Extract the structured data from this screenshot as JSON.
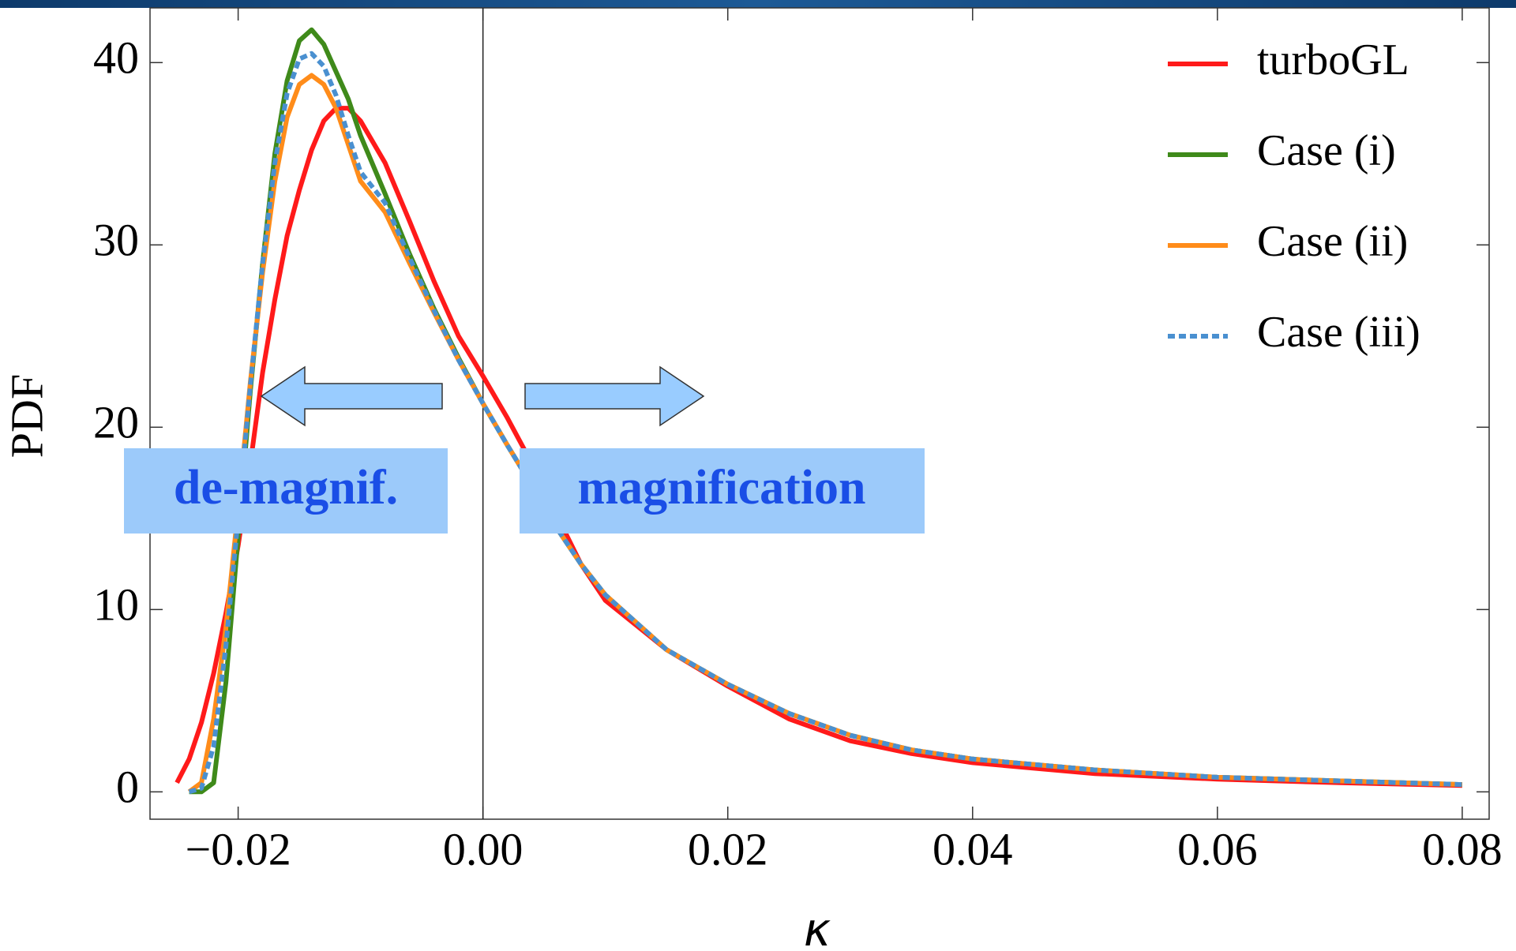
{
  "chart_data": {
    "type": "line",
    "x_label": "κ",
    "y_label": "PDF",
    "x": [
      -0.026,
      -0.025,
      -0.024,
      -0.023,
      -0.022,
      -0.021,
      -0.02,
      -0.019,
      -0.018,
      -0.017,
      -0.016,
      -0.015,
      -0.014,
      -0.013,
      -0.012,
      -0.011,
      -0.01,
      -0.008,
      -0.006,
      -0.004,
      -0.002,
      0,
      0.002,
      0.004,
      0.006,
      0.008,
      0.01,
      0.015,
      0.02,
      0.025,
      0.03,
      0.035,
      0.04,
      0.05,
      0.06,
      0.07,
      0.08
    ],
    "series": [
      {
        "name": "turboGL",
        "color": "#ff1a1a",
        "style": "solid",
        "values": [
          null,
          0.5,
          1.8,
          3.8,
          6.5,
          9.8,
          13.5,
          18,
          23,
          27,
          30.5,
          33,
          35.2,
          36.8,
          37.5,
          37.5,
          36.8,
          34.5,
          31.3,
          28,
          25,
          22.8,
          20.5,
          18,
          15.2,
          12.5,
          10.5,
          7.8,
          5.8,
          4,
          2.8,
          2.1,
          1.6,
          1.0,
          0.7,
          0.5,
          0.35
        ]
      },
      {
        "name": "Case (i)",
        "color": "#3f8a1a",
        "style": "solid",
        "values": [
          null,
          null,
          0,
          0,
          0.5,
          6,
          14,
          22,
          29,
          35,
          39,
          41.2,
          41.8,
          41,
          39.5,
          38,
          36,
          32.8,
          29.5,
          26.5,
          23.8,
          21.3,
          19,
          16.8,
          14.5,
          12.5,
          10.8,
          7.8,
          5.9,
          4.3,
          3.1,
          2.3,
          1.8,
          1.2,
          0.8,
          0.6,
          0.4
        ]
      },
      {
        "name": "Case (ii)",
        "color": "#ff8c1a",
        "style": "solid",
        "values": [
          null,
          null,
          0,
          0.5,
          4,
          9,
          15.5,
          22.5,
          28.5,
          33.5,
          37,
          38.8,
          39.3,
          38.8,
          37.5,
          35.5,
          33.5,
          31.8,
          29,
          26.3,
          23.7,
          21.3,
          19,
          16.8,
          14.5,
          12.5,
          10.8,
          7.8,
          5.9,
          4.3,
          3.1,
          2.3,
          1.8,
          1.2,
          0.8,
          0.6,
          0.4
        ]
      },
      {
        "name": "Case (iii)",
        "color": "#4a90d0",
        "style": "dashed",
        "values": [
          null,
          null,
          0,
          0.2,
          2.5,
          8,
          15,
          22.3,
          29,
          34.5,
          38.3,
          40.2,
          40.5,
          39.8,
          38.2,
          36,
          34,
          32.3,
          29.3,
          26.4,
          23.7,
          21.3,
          19,
          16.8,
          14.5,
          12.5,
          10.8,
          7.8,
          5.9,
          4.3,
          3.1,
          2.3,
          1.8,
          1.2,
          0.8,
          0.6,
          0.4
        ]
      }
    ],
    "xlim": [
      -0.0272,
      0.0822
    ],
    "ylim": [
      -1.5,
      43
    ],
    "xticks": [
      {
        "value": -0.02,
        "label": "−0.02"
      },
      {
        "value": 0,
        "label": "0.00"
      },
      0.02,
      0.04,
      0.06,
      0.08
    ],
    "yticks": [
      0,
      10,
      20,
      30,
      40
    ],
    "legend": "upper right",
    "annotations": [
      "de-magnif.",
      "magnification"
    ]
  }
}
